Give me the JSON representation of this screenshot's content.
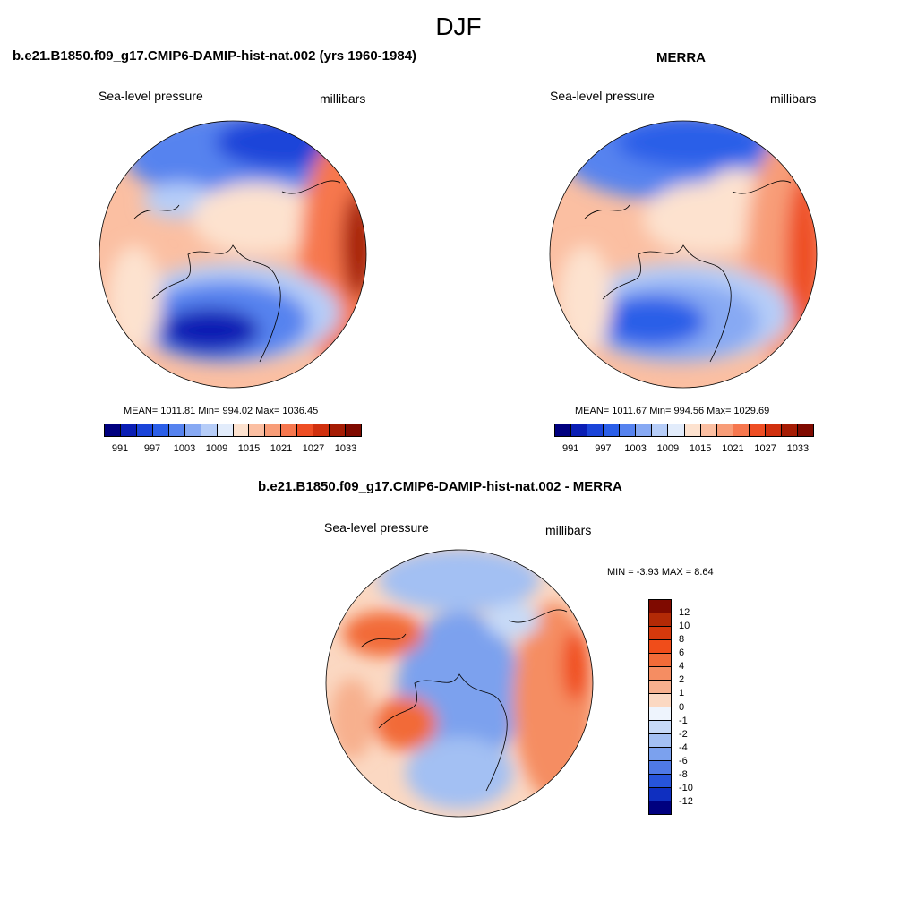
{
  "main_title": "DJF",
  "panels": [
    {
      "title": "b.e21.B1850.f09_g17.CMIP6-DAMIP-hist-nat.002 (yrs 1960-1984)",
      "left_label": "Sea-level pressure",
      "right_label": "millibars",
      "stats": "MEAN= 1011.81  Min= 994.02  Max= 1036.45",
      "colorbar_ticks": [
        "991",
        "997",
        "1003",
        "1009",
        "1015",
        "1021",
        "1027",
        "1033"
      ]
    },
    {
      "title": "MERRA",
      "left_label": "Sea-level pressure",
      "right_label": "millibars",
      "stats": "MEAN= 1011.67  Min= 994.56  Max= 1029.69",
      "colorbar_ticks": [
        "991",
        "997",
        "1003",
        "1009",
        "1015",
        "1021",
        "1027",
        "1033"
      ]
    },
    {
      "title": "b.e21.B1850.f09_g17.CMIP6-DAMIP-hist-nat.002 - MERRA",
      "left_label": "Sea-level pressure",
      "right_label": "millibars",
      "stats": "MIN =  -3.93 MAX =   8.64",
      "colorbar_ticks": [
        "12",
        "10",
        "8",
        "6",
        "4",
        "2",
        "1",
        "0",
        "-1",
        "-2",
        "-4",
        "-6",
        "-8",
        "-10",
        "-12"
      ]
    }
  ],
  "colors": {
    "abs_scale": [
      "#00007f",
      "#0a1eb4",
      "#1a44d9",
      "#2b5fe8",
      "#5683ef",
      "#87a9f3",
      "#b6cdf8",
      "#e2ecfb",
      "#fde2cf",
      "#fbbfa2",
      "#f89d78",
      "#f6774e",
      "#ee4e24",
      "#d0300e",
      "#a51c04",
      "#7f0a00"
    ],
    "diff_scale": [
      "#7f0a00",
      "#b32a06",
      "#d6390c",
      "#f04d1a",
      "#f26b38",
      "#f58d62",
      "#f7b08e",
      "#fbd8c2",
      "#eef4fd",
      "#c7daf7",
      "#a3c0f3",
      "#7ba1ee",
      "#4f79e6",
      "#2754db",
      "#0f2fc0",
      "#00007f"
    ]
  }
}
